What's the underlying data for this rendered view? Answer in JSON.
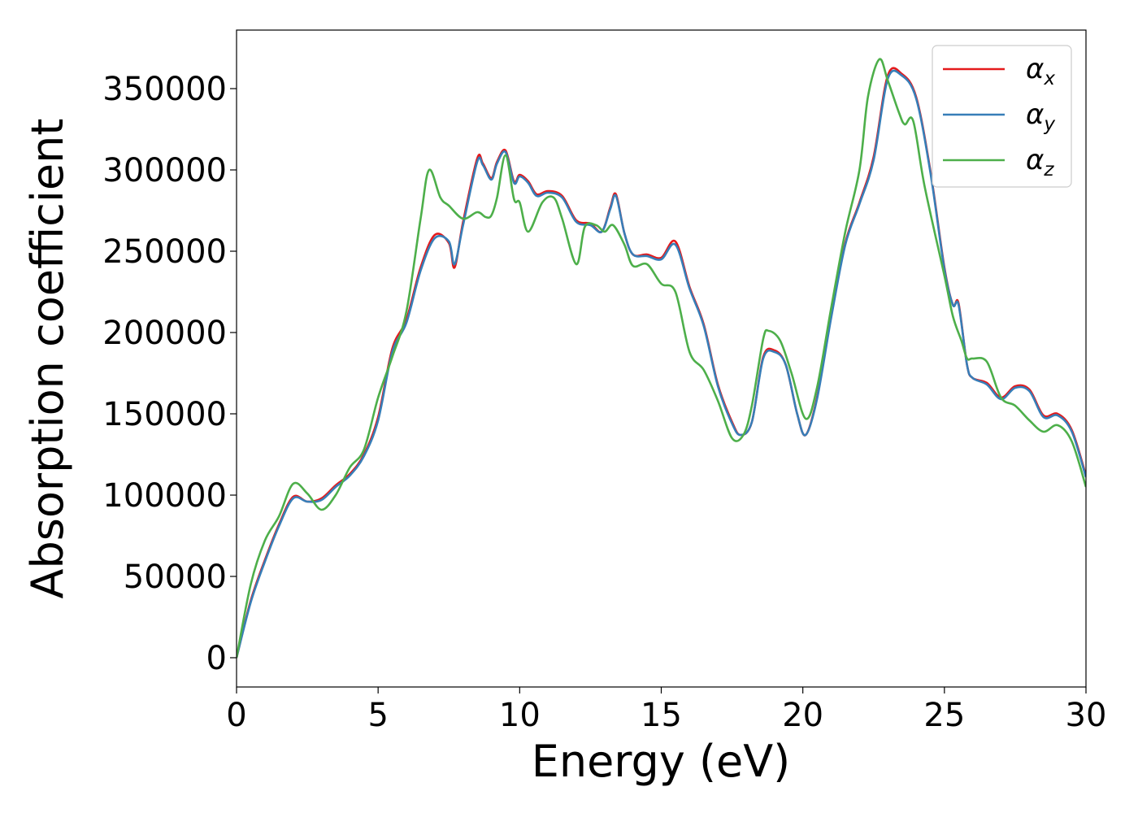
{
  "chart_data": {
    "type": "line",
    "title": "",
    "xlabel": "Energy (eV)",
    "ylabel": "Absorption coefficient",
    "xlim": [
      0,
      30
    ],
    "ylim": [
      -18000,
      386000
    ],
    "xticks": [
      0,
      5,
      10,
      15,
      20,
      25,
      30
    ],
    "yticks": [
      0,
      50000,
      100000,
      150000,
      200000,
      250000,
      300000,
      350000
    ],
    "grid": false,
    "legend_position": "top-right",
    "series": [
      {
        "name": "αx",
        "name_base": "α",
        "name_sub": "x",
        "color": "#e41a1c",
        "x": [
          0,
          0.5,
          1.0,
          1.5,
          2.0,
          2.5,
          3.0,
          3.5,
          4.0,
          4.5,
          5.0,
          5.5,
          6.0,
          6.5,
          7.0,
          7.5,
          7.7,
          8.0,
          8.5,
          8.7,
          9.0,
          9.2,
          9.5,
          9.8,
          10.0,
          10.3,
          10.6,
          11.0,
          11.5,
          12.0,
          12.5,
          12.9,
          13.2,
          13.4,
          13.7,
          14.0,
          14.5,
          15.0,
          15.5,
          16.0,
          16.5,
          17.0,
          17.5,
          17.8,
          18.2,
          18.6,
          19.0,
          19.4,
          19.8,
          20.1,
          20.5,
          21.0,
          21.5,
          22.0,
          22.5,
          23.0,
          23.5,
          24.0,
          24.5,
          25.0,
          25.3,
          25.5,
          25.8,
          26.0,
          26.5,
          27.0,
          27.5,
          28.0,
          28.5,
          29.0,
          29.5,
          30.0
        ],
        "y": [
          0,
          35000,
          60000,
          82000,
          99000,
          96000,
          98000,
          106000,
          113000,
          125000,
          148000,
          190000,
          208000,
          240000,
          260000,
          255000,
          240000,
          268000,
          307000,
          304000,
          295000,
          305000,
          312000,
          293000,
          297000,
          293000,
          285000,
          287000,
          284000,
          269000,
          267000,
          262000,
          277000,
          285000,
          261000,
          248000,
          248000,
          246000,
          256000,
          228000,
          205000,
          168000,
          145000,
          137000,
          145000,
          185000,
          189000,
          180000,
          150000,
          137000,
          160000,
          210000,
          255000,
          280000,
          308000,
          358000,
          359000,
          345000,
          300000,
          240000,
          217000,
          218000,
          180000,
          172000,
          169000,
          160000,
          167000,
          165000,
          149000,
          150000,
          140000,
          112000
        ]
      },
      {
        "name": "αy",
        "name_base": "α",
        "name_sub": "y",
        "color": "#377eb8",
        "x": [
          0,
          0.5,
          1.0,
          1.5,
          2.0,
          2.5,
          3.0,
          3.5,
          4.0,
          4.5,
          5.0,
          5.5,
          6.0,
          6.5,
          7.0,
          7.5,
          7.7,
          8.0,
          8.5,
          8.7,
          9.0,
          9.2,
          9.5,
          9.8,
          10.0,
          10.3,
          10.6,
          11.0,
          11.5,
          12.0,
          12.5,
          12.9,
          13.2,
          13.4,
          13.7,
          14.0,
          14.5,
          15.0,
          15.5,
          16.0,
          16.5,
          17.0,
          17.5,
          17.8,
          18.2,
          18.6,
          19.0,
          19.4,
          19.8,
          20.1,
          20.5,
          21.0,
          21.5,
          22.0,
          22.5,
          23.0,
          23.5,
          24.0,
          24.5,
          25.0,
          25.3,
          25.5,
          25.8,
          26.0,
          26.5,
          27.0,
          27.5,
          28.0,
          28.5,
          29.0,
          29.5,
          30.0
        ],
        "y": [
          0,
          34000,
          59000,
          81000,
          98000,
          96000,
          97000,
          105000,
          112000,
          124000,
          146000,
          188000,
          206000,
          238000,
          258000,
          256000,
          242000,
          266000,
          305000,
          303000,
          294000,
          304000,
          311000,
          292000,
          296000,
          292000,
          284000,
          286000,
          283000,
          268000,
          266000,
          262000,
          276000,
          284000,
          261000,
          248000,
          247000,
          245000,
          254000,
          227000,
          204000,
          167000,
          144000,
          137000,
          145000,
          184000,
          188000,
          180000,
          150000,
          137000,
          159000,
          209000,
          254000,
          279000,
          306000,
          356000,
          358000,
          344000,
          299000,
          239000,
          217000,
          217000,
          180000,
          172000,
          168000,
          159000,
          166000,
          164000,
          148000,
          149000,
          139000,
          111000
        ]
      },
      {
        "name": "αz",
        "name_base": "α",
        "name_sub": "z",
        "color": "#4daf4a",
        "x": [
          0,
          0.5,
          1.0,
          1.5,
          2.0,
          2.5,
          3.0,
          3.5,
          4.0,
          4.5,
          5.0,
          5.5,
          6.0,
          6.5,
          6.8,
          7.2,
          7.5,
          8.0,
          8.5,
          8.8,
          9.0,
          9.2,
          9.5,
          9.8,
          10.0,
          10.3,
          10.8,
          11.2,
          11.5,
          12.0,
          12.3,
          12.7,
          13.0,
          13.3,
          13.7,
          14.0,
          14.5,
          15.0,
          15.5,
          16.0,
          16.5,
          17.0,
          17.5,
          17.9,
          18.2,
          18.6,
          18.8,
          19.2,
          19.6,
          20.1,
          20.5,
          21.0,
          21.5,
          22.0,
          22.3,
          22.7,
          23.0,
          23.4,
          23.6,
          23.9,
          24.3,
          25.0,
          25.3,
          25.6,
          25.8,
          26.0,
          26.5,
          27.0,
          27.5,
          28.0,
          28.5,
          29.0,
          29.5,
          30.0
        ],
        "y": [
          0,
          45000,
          72000,
          87000,
          107000,
          101000,
          91000,
          100000,
          117000,
          128000,
          160000,
          185000,
          213000,
          270000,
          300000,
          283000,
          278000,
          270000,
          274000,
          271000,
          272000,
          283000,
          309000,
          282000,
          280000,
          262000,
          280000,
          283000,
          270000,
          242000,
          265000,
          266000,
          262000,
          266000,
          254000,
          241000,
          242000,
          230000,
          225000,
          188000,
          177000,
          158000,
          135000,
          137000,
          155000,
          196000,
          201000,
          195000,
          175000,
          147000,
          166000,
          215000,
          262000,
          300000,
          345000,
          368000,
          355000,
          335000,
          328000,
          330000,
          290000,
          235000,
          210000,
          195000,
          184000,
          184000,
          182000,
          160000,
          155000,
          146000,
          139000,
          143000,
          133000,
          105000
        ]
      }
    ]
  }
}
